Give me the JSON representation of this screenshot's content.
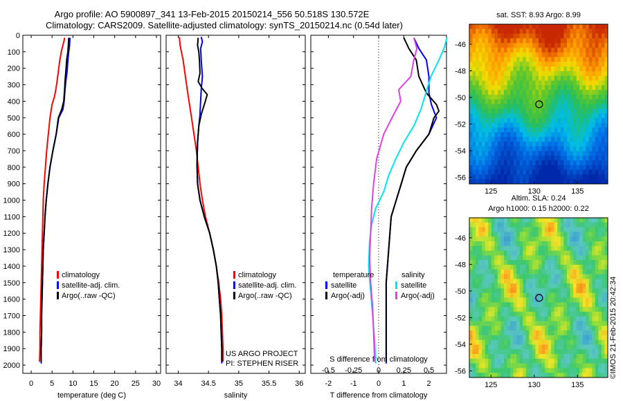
{
  "header": {
    "line1": "Argo profile: AO 5900897_341 13-Feb-2015 20150214_556 50.518S 130.572E",
    "line2": "Climatology: CARS2009. Satellite-adjusted climatology: synTS_20150214.nc (0.54d later)"
  },
  "depth_ticks": [
    "0",
    "100",
    "200",
    "300",
    "400",
    "500",
    "600",
    "700",
    "800",
    "900",
    "1000",
    "1100",
    "1200",
    "1300",
    "1400",
    "1500",
    "1600",
    "1700",
    "1800",
    "1900",
    "2000"
  ],
  "colors": {
    "climatology": "#ff0000",
    "satellite": "#0000ff",
    "argo": "#000000",
    "satellite_s": "#00e5ee",
    "argo_s": "#e040e0"
  },
  "chart_data": [
    {
      "type": "line",
      "panel": "temperature",
      "xlabel": "temperature (deg C)",
      "ylabel": "",
      "xlim": [
        -2,
        31
      ],
      "ylim": [
        2050,
        0
      ],
      "xticks": [
        "0",
        "5",
        "10",
        "15",
        "20",
        "25",
        "30"
      ],
      "legend": [
        "climatology",
        "satellite-adj. clim.",
        "Argo(..raw -QC)"
      ],
      "series": [
        {
          "name": "climatology",
          "color_key": "climatology",
          "points": [
            [
              8.0,
              15
            ],
            [
              7.9,
              30
            ],
            [
              7.6,
              60
            ],
            [
              7.2,
              100
            ],
            [
              6.8,
              160
            ],
            [
              6.5,
              220
            ],
            [
              6.2,
              280
            ],
            [
              5.9,
              330
            ],
            [
              5.6,
              370
            ],
            [
              5.0,
              420
            ],
            [
              4.5,
              500
            ],
            [
              4.1,
              600
            ],
            [
              3.7,
              700
            ],
            [
              3.4,
              800
            ],
            [
              3.1,
              900
            ],
            [
              2.9,
              1000
            ],
            [
              2.8,
              1100
            ],
            [
              2.7,
              1200
            ],
            [
              2.6,
              1300
            ],
            [
              2.5,
              1400
            ],
            [
              2.4,
              1500
            ],
            [
              2.3,
              1600
            ],
            [
              2.2,
              1700
            ],
            [
              2.1,
              1800
            ],
            [
              2.1,
              1900
            ],
            [
              2.0,
              1980
            ]
          ]
        },
        {
          "name": "satellite-adj. clim.",
          "color_key": "satellite",
          "points": [
            [
              9.3,
              15
            ],
            [
              9.2,
              60
            ],
            [
              9.0,
              100
            ],
            [
              8.8,
              150
            ],
            [
              8.6,
              220
            ],
            [
              8.3,
              280
            ],
            [
              8.1,
              330
            ],
            [
              7.9,
              400
            ],
            [
              7.6,
              450
            ],
            [
              6.6,
              500
            ],
            [
              6.0,
              600
            ],
            [
              5.2,
              700
            ],
            [
              4.5,
              800
            ],
            [
              4.0,
              900
            ],
            [
              3.6,
              1000
            ],
            [
              3.3,
              1100
            ],
            [
              3.1,
              1200
            ],
            [
              2.9,
              1300
            ],
            [
              2.8,
              1400
            ],
            [
              2.7,
              1500
            ],
            [
              2.6,
              1600
            ],
            [
              2.5,
              1700
            ],
            [
              2.5,
              1800
            ],
            [
              2.4,
              1900
            ],
            [
              2.4,
              1990
            ]
          ]
        },
        {
          "name": "Argo(..raw -QC)",
          "color_key": "argo",
          "points": [
            [
              9.0,
              15
            ],
            [
              8.9,
              60
            ],
            [
              8.8,
              100
            ],
            [
              8.5,
              150
            ],
            [
              8.3,
              220
            ],
            [
              8.1,
              280
            ],
            [
              8.0,
              330
            ],
            [
              7.8,
              400
            ],
            [
              7.3,
              450
            ],
            [
              6.5,
              500
            ],
            [
              6.0,
              600
            ],
            [
              5.2,
              700
            ],
            [
              4.5,
              800
            ],
            [
              4.0,
              900
            ],
            [
              3.6,
              1000
            ],
            [
              3.3,
              1100
            ],
            [
              3.1,
              1200
            ],
            [
              2.9,
              1300
            ],
            [
              2.8,
              1400
            ],
            [
              2.7,
              1500
            ],
            [
              2.6,
              1600
            ],
            [
              2.5,
              1700
            ],
            [
              2.5,
              1800
            ],
            [
              2.4,
              1900
            ],
            [
              2.4,
              1980
            ]
          ]
        }
      ]
    },
    {
      "type": "line",
      "panel": "salinity",
      "xlabel": "salinity",
      "ylabel": "",
      "xlim": [
        33.8,
        36.1
      ],
      "ylim": [
        2050,
        0
      ],
      "xticks": [
        "34",
        "34.5",
        "35",
        "35.5",
        "36"
      ],
      "legend": [
        "climatology",
        "satellite-adj. clim.",
        "Argo(..raw -QC)"
      ],
      "annotation": [
        "US ARGO PROJECT",
        "PI: STEPHEN RISER"
      ],
      "series": [
        {
          "name": "climatology",
          "color_key": "climatology",
          "points": [
            [
              34.02,
              10
            ],
            [
              34.03,
              60
            ],
            [
              34.08,
              150
            ],
            [
              34.13,
              280
            ],
            [
              34.17,
              380
            ],
            [
              34.22,
              500
            ],
            [
              34.26,
              600
            ],
            [
              34.3,
              700
            ],
            [
              34.33,
              800
            ],
            [
              34.36,
              900
            ],
            [
              34.4,
              1000
            ],
            [
              34.45,
              1100
            ],
            [
              34.52,
              1200
            ],
            [
              34.58,
              1300
            ],
            [
              34.63,
              1400
            ],
            [
              34.67,
              1500
            ],
            [
              34.7,
              1600
            ],
            [
              34.72,
              1700
            ],
            [
              34.73,
              1800
            ],
            [
              34.74,
              1900
            ],
            [
              34.74,
              1980
            ]
          ]
        },
        {
          "name": "satellite-adj. clim.",
          "color_key": "satellite",
          "points": [
            [
              34.38,
              10
            ],
            [
              34.4,
              40
            ],
            [
              34.37,
              80
            ],
            [
              34.38,
              150
            ],
            [
              34.4,
              250
            ],
            [
              34.38,
              330
            ],
            [
              34.37,
              400
            ],
            [
              34.36,
              480
            ],
            [
              34.34,
              550
            ],
            [
              34.32,
              650
            ],
            [
              34.31,
              780
            ],
            [
              34.32,
              900
            ],
            [
              34.36,
              1000
            ],
            [
              34.43,
              1100
            ],
            [
              34.52,
              1200
            ],
            [
              34.58,
              1300
            ],
            [
              34.63,
              1400
            ],
            [
              34.66,
              1500
            ],
            [
              34.68,
              1600
            ],
            [
              34.7,
              1700
            ],
            [
              34.71,
              1800
            ],
            [
              34.72,
              1900
            ],
            [
              34.72,
              1990
            ]
          ]
        },
        {
          "name": "Argo(..raw -QC)",
          "color_key": "argo",
          "points": [
            [
              34.33,
              15
            ],
            [
              34.32,
              60
            ],
            [
              34.34,
              100
            ],
            [
              34.35,
              150
            ],
            [
              34.36,
              230
            ],
            [
              34.33,
              280
            ],
            [
              34.39,
              320
            ],
            [
              34.48,
              360
            ],
            [
              34.44,
              410
            ],
            [
              34.38,
              480
            ],
            [
              34.34,
              550
            ],
            [
              34.32,
              650
            ],
            [
              34.31,
              780
            ],
            [
              34.32,
              900
            ],
            [
              34.36,
              1000
            ],
            [
              34.43,
              1100
            ],
            [
              34.52,
              1200
            ],
            [
              34.58,
              1300
            ],
            [
              34.63,
              1400
            ],
            [
              34.66,
              1500
            ],
            [
              34.68,
              1600
            ],
            [
              34.7,
              1700
            ],
            [
              34.71,
              1800
            ],
            [
              34.72,
              1900
            ],
            [
              34.72,
              1980
            ]
          ]
        }
      ]
    },
    {
      "type": "line",
      "panel": "differences",
      "xlabel": "T difference from climatology",
      "xlabel_top": "S difference from climatology",
      "xlim": [
        -2.7,
        2.7
      ],
      "ylim": [
        2050,
        0
      ],
      "xticks": [
        "-2",
        "-1",
        "0",
        "1",
        "2"
      ],
      "xticks_top": [
        "-0.5",
        "-0.25",
        "0",
        "0.25",
        "0.5"
      ],
      "legend_t": [
        "temperature",
        "satellite",
        "Argo(-adj)"
      ],
      "legend_s": [
        "salinity",
        "satellite",
        "Argo(-adj)"
      ],
      "series": [
        {
          "name": "satellite",
          "group": "temperature",
          "color_key": "satellite",
          "points": [
            [
              1.4,
              15
            ],
            [
              1.6,
              80
            ],
            [
              1.9,
              150
            ],
            [
              2.0,
              250
            ],
            [
              2.0,
              350
            ],
            [
              2.1,
              420
            ],
            [
              2.3,
              500
            ],
            [
              2.0,
              600
            ],
            [
              1.5,
              700
            ],
            [
              1.1,
              800
            ],
            [
              0.9,
              900
            ],
            [
              0.7,
              1000
            ],
            [
              0.5,
              1100
            ],
            [
              0.45,
              1200
            ],
            [
              0.4,
              1300
            ],
            [
              0.35,
              1400
            ],
            [
              0.3,
              1500
            ],
            [
              0.3,
              1600
            ],
            [
              0.3,
              1700
            ],
            [
              0.3,
              1800
            ],
            [
              0.3,
              1900
            ],
            [
              0.3,
              1990
            ]
          ]
        },
        {
          "name": "Argo(-adj)",
          "group": "temperature",
          "color_key": "argo",
          "points": [
            [
              1.0,
              15
            ],
            [
              1.2,
              80
            ],
            [
              1.5,
              150
            ],
            [
              1.6,
              250
            ],
            [
              1.9,
              350
            ],
            [
              2.3,
              420
            ],
            [
              2.4,
              460
            ],
            [
              2.2,
              500
            ],
            [
              2.0,
              600
            ],
            [
              1.5,
              700
            ],
            [
              1.1,
              800
            ],
            [
              0.9,
              900
            ],
            [
              0.7,
              1000
            ],
            [
              0.5,
              1100
            ],
            [
              0.45,
              1200
            ],
            [
              0.4,
              1300
            ],
            [
              0.35,
              1400
            ],
            [
              0.3,
              1500
            ],
            [
              0.3,
              1600
            ],
            [
              0.3,
              1700
            ],
            [
              0.3,
              1800
            ],
            [
              0.3,
              1900
            ],
            [
              0.3,
              1980
            ]
          ]
        },
        {
          "name": "satellite",
          "group": "salinity",
          "color_key": "satellite_s",
          "points": [
            [
              0.68,
              15
            ],
            [
              0.65,
              80
            ],
            [
              0.6,
              150
            ],
            [
              0.52,
              250
            ],
            [
              0.47,
              350
            ],
            [
              0.42,
              450
            ],
            [
              0.35,
              550
            ],
            [
              0.25,
              650
            ],
            [
              0.17,
              750
            ],
            [
              0.1,
              850
            ],
            [
              0.05,
              950
            ],
            [
              -0.03,
              1050
            ],
            [
              -0.07,
              1150
            ],
            [
              -0.09,
              1250
            ],
            [
              -0.1,
              1400
            ],
            [
              -0.08,
              1550
            ],
            [
              -0.06,
              1700
            ],
            [
              -0.04,
              1850
            ],
            [
              -0.03,
              1990
            ]
          ]
        },
        {
          "name": "Argo(-adj)",
          "group": "salinity",
          "color_key": "argo_s",
          "points": [
            [
              0.35,
              15
            ],
            [
              0.38,
              80
            ],
            [
              0.35,
              150
            ],
            [
              0.32,
              250
            ],
            [
              0.2,
              330
            ],
            [
              0.22,
              400
            ],
            [
              0.15,
              480
            ],
            [
              0.05,
              600
            ],
            [
              -0.02,
              750
            ],
            [
              -0.05,
              900
            ],
            [
              -0.07,
              1050
            ],
            [
              -0.08,
              1200
            ],
            [
              -0.09,
              1350
            ],
            [
              -0.08,
              1500
            ],
            [
              -0.06,
              1650
            ],
            [
              -0.05,
              1800
            ],
            [
              -0.04,
              1980
            ]
          ]
        }
      ]
    },
    {
      "type": "heatmap",
      "panel": "sst_map",
      "title": "sat. SST: 8.93 Argo: 8.99",
      "xlim": [
        122.5,
        138.5
      ],
      "ylim": [
        -56.5,
        -44.5
      ],
      "xticks": [
        "125",
        "130",
        "135"
      ],
      "yticks": [
        "-46",
        "-48",
        "-50",
        "-52",
        "-54",
        "-56"
      ],
      "marker": {
        "lon": 130.572,
        "lat": -50.518
      }
    },
    {
      "type": "heatmap",
      "panel": "sla_map",
      "title_lines": [
        "Altim. SLA: 0.24",
        "Argo h1000: 0.15 h2000: 0.22"
      ],
      "xlim": [
        122.5,
        138.5
      ],
      "ylim": [
        -56.5,
        -44.5
      ],
      "xticks": [
        "125",
        "130",
        "135"
      ],
      "yticks": [
        "-46",
        "-48",
        "-50",
        "-52",
        "-54",
        "-56"
      ],
      "marker": {
        "lon": 130.572,
        "lat": -50.518
      }
    }
  ],
  "footer": {
    "credit": "©IMOS 21-Feb-2015 20:42:34"
  }
}
